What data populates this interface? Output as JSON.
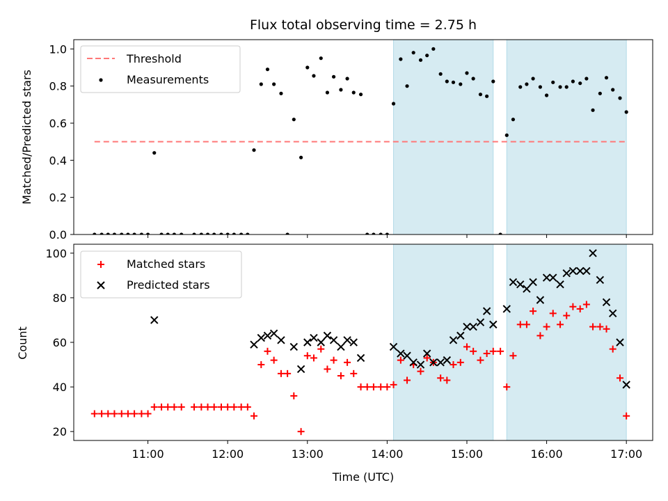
{
  "title": "Flux total observing time = 2.75 h",
  "top_ylabel": "Matched/Predicted stars",
  "bottom_ylabel": "Count",
  "xlabel": "Time (UTC)",
  "legend_top": {
    "threshold": "Threshold",
    "measurements": "Measurements"
  },
  "legend_bottom": {
    "matched": "Matched stars",
    "predicted": "Predicted stars"
  },
  "colors": {
    "threshold": "#ff7777",
    "measurement": "#000000",
    "matched": "#ff0000",
    "predicted": "#000000",
    "shade": "#add8e6"
  },
  "chart_data": [
    {
      "type": "scatter",
      "title": "Flux total observing time = 2.75 h",
      "ylabel": "Matched/Predicted stars",
      "xlim": [
        10.07,
        17.33
      ],
      "ylim": [
        0,
        1.05
      ],
      "xticks": [
        11,
        12,
        13,
        14,
        15,
        16,
        17
      ],
      "yticks": [
        0.0,
        0.2,
        0.4,
        0.6,
        0.8,
        1.0
      ],
      "ytick_labels": [
        "0.0",
        "0.2",
        "0.4",
        "0.6",
        "0.8",
        "1.0"
      ],
      "legend_position": "top-left",
      "threshold": {
        "y": 0.5,
        "x_range": [
          10.33,
          17.0
        ]
      },
      "shaded_intervals": [
        [
          14.08,
          15.33
        ],
        [
          15.5,
          17.0
        ]
      ],
      "series": [
        {
          "name": "Measurements",
          "points": [
            [
              10.33,
              0
            ],
            [
              10.42,
              0
            ],
            [
              10.5,
              0
            ],
            [
              10.58,
              0
            ],
            [
              10.67,
              0
            ],
            [
              10.75,
              0
            ],
            [
              10.83,
              0
            ],
            [
              10.92,
              0
            ],
            [
              11.0,
              0
            ],
            [
              11.08,
              0.44
            ],
            [
              11.17,
              0
            ],
            [
              11.25,
              0
            ],
            [
              11.33,
              0
            ],
            [
              11.42,
              0
            ],
            [
              11.58,
              0
            ],
            [
              11.67,
              0
            ],
            [
              11.75,
              0
            ],
            [
              11.83,
              0
            ],
            [
              11.92,
              0
            ],
            [
              12.0,
              0
            ],
            [
              12.08,
              0
            ],
            [
              12.17,
              0
            ],
            [
              12.25,
              0
            ],
            [
              12.33,
              0.455
            ],
            [
              12.42,
              0.81
            ],
            [
              12.5,
              0.89
            ],
            [
              12.58,
              0.81
            ],
            [
              12.67,
              0.76
            ],
            [
              12.75,
              0
            ],
            [
              12.83,
              0.62
            ],
            [
              12.92,
              0.415
            ],
            [
              13.0,
              0.9
            ],
            [
              13.08,
              0.855
            ],
            [
              13.17,
              0.95
            ],
            [
              13.25,
              0.765
            ],
            [
              13.33,
              0.85
            ],
            [
              13.42,
              0.78
            ],
            [
              13.5,
              0.84
            ],
            [
              13.58,
              0.765
            ],
            [
              13.67,
              0.755
            ],
            [
              13.75,
              0
            ],
            [
              13.83,
              0
            ],
            [
              13.92,
              0
            ],
            [
              14.0,
              0
            ],
            [
              14.08,
              0.705
            ],
            [
              14.17,
              0.945
            ],
            [
              14.25,
              0.8
            ],
            [
              14.33,
              0.98
            ],
            [
              14.42,
              0.94
            ],
            [
              14.5,
              0.965
            ],
            [
              14.58,
              1.0
            ],
            [
              14.67,
              0.865
            ],
            [
              14.75,
              0.825
            ],
            [
              14.83,
              0.82
            ],
            [
              14.92,
              0.81
            ],
            [
              15.0,
              0.87
            ],
            [
              15.08,
              0.84
            ],
            [
              15.17,
              0.755
            ],
            [
              15.25,
              0.745
            ],
            [
              15.33,
              0.825
            ],
            [
              15.42,
              0
            ],
            [
              15.5,
              0.535
            ],
            [
              15.58,
              0.62
            ],
            [
              15.67,
              0.795
            ],
            [
              15.75,
              0.81
            ],
            [
              15.83,
              0.84
            ],
            [
              15.92,
              0.795
            ],
            [
              16.0,
              0.75
            ],
            [
              16.08,
              0.82
            ],
            [
              16.17,
              0.795
            ],
            [
              16.25,
              0.795
            ],
            [
              16.33,
              0.825
            ],
            [
              16.42,
              0.815
            ],
            [
              16.5,
              0.84
            ],
            [
              16.58,
              0.67
            ],
            [
              16.67,
              0.76
            ],
            [
              16.75,
              0.845
            ],
            [
              16.83,
              0.78
            ],
            [
              16.92,
              0.735
            ],
            [
              17.0,
              0.66
            ]
          ]
        }
      ]
    },
    {
      "type": "scatter",
      "xlabel": "Time (UTC)",
      "ylabel": "Count",
      "xlim": [
        10.07,
        17.33
      ],
      "ylim": [
        16,
        104
      ],
      "xticks": [
        11,
        12,
        13,
        14,
        15,
        16,
        17
      ],
      "xtick_labels": [
        "11:00",
        "12:00",
        "13:00",
        "14:00",
        "15:00",
        "16:00",
        "17:00"
      ],
      "yticks": [
        20,
        40,
        60,
        80,
        100
      ],
      "legend_position": "top-left",
      "shaded_intervals": [
        [
          14.08,
          15.33
        ],
        [
          15.5,
          17.0
        ]
      ],
      "series": [
        {
          "name": "Matched stars",
          "points": [
            [
              10.33,
              28
            ],
            [
              10.42,
              28
            ],
            [
              10.5,
              28
            ],
            [
              10.58,
              28
            ],
            [
              10.67,
              28
            ],
            [
              10.75,
              28
            ],
            [
              10.83,
              28
            ],
            [
              10.92,
              28
            ],
            [
              11.0,
              28
            ],
            [
              11.08,
              31
            ],
            [
              11.17,
              31
            ],
            [
              11.25,
              31
            ],
            [
              11.33,
              31
            ],
            [
              11.42,
              31
            ],
            [
              11.58,
              31
            ],
            [
              11.67,
              31
            ],
            [
              11.75,
              31
            ],
            [
              11.83,
              31
            ],
            [
              11.92,
              31
            ],
            [
              12.0,
              31
            ],
            [
              12.08,
              31
            ],
            [
              12.17,
              31
            ],
            [
              12.25,
              31
            ],
            [
              12.33,
              27
            ],
            [
              12.42,
              50
            ],
            [
              12.5,
              56
            ],
            [
              12.58,
              52
            ],
            [
              12.67,
              46
            ],
            [
              12.75,
              46
            ],
            [
              12.83,
              36
            ],
            [
              12.92,
              20
            ],
            [
              13.0,
              54
            ],
            [
              13.08,
              53
            ],
            [
              13.17,
              57
            ],
            [
              13.25,
              48
            ],
            [
              13.33,
              52
            ],
            [
              13.42,
              45
            ],
            [
              13.5,
              51
            ],
            [
              13.58,
              46
            ],
            [
              13.67,
              40
            ],
            [
              13.75,
              40
            ],
            [
              13.83,
              40
            ],
            [
              13.92,
              40
            ],
            [
              14.0,
              40
            ],
            [
              14.08,
              41
            ],
            [
              14.17,
              52
            ],
            [
              14.25,
              43
            ],
            [
              14.33,
              50
            ],
            [
              14.42,
              47
            ],
            [
              14.5,
              53
            ],
            [
              14.58,
              51
            ],
            [
              14.67,
              44
            ],
            [
              14.75,
              43
            ],
            [
              14.83,
              50
            ],
            [
              14.92,
              51
            ],
            [
              15.0,
              58
            ],
            [
              15.08,
              56
            ],
            [
              15.17,
              52
            ],
            [
              15.25,
              55
            ],
            [
              15.33,
              56
            ],
            [
              15.42,
              56
            ],
            [
              15.5,
              40
            ],
            [
              15.58,
              54
            ],
            [
              15.67,
              68
            ],
            [
              15.75,
              68
            ],
            [
              15.83,
              74
            ],
            [
              15.92,
              63
            ],
            [
              16.0,
              67
            ],
            [
              16.08,
              73
            ],
            [
              16.17,
              68
            ],
            [
              16.25,
              72
            ],
            [
              16.33,
              76
            ],
            [
              16.42,
              75
            ],
            [
              16.5,
              77
            ],
            [
              16.58,
              67
            ],
            [
              16.67,
              67
            ],
            [
              16.75,
              66
            ],
            [
              16.83,
              57
            ],
            [
              16.92,
              44
            ],
            [
              17.0,
              27
            ]
          ]
        },
        {
          "name": "Predicted stars",
          "points": [
            [
              11.08,
              70
            ],
            [
              12.33,
              59
            ],
            [
              12.42,
              62
            ],
            [
              12.5,
              63
            ],
            [
              12.58,
              64
            ],
            [
              12.67,
              61
            ],
            [
              12.83,
              58
            ],
            [
              12.92,
              48
            ],
            [
              13.0,
              60
            ],
            [
              13.08,
              62
            ],
            [
              13.17,
              60
            ],
            [
              13.25,
              63
            ],
            [
              13.33,
              61
            ],
            [
              13.42,
              58
            ],
            [
              13.5,
              61
            ],
            [
              13.58,
              60
            ],
            [
              13.67,
              53
            ],
            [
              14.08,
              58
            ],
            [
              14.17,
              55
            ],
            [
              14.25,
              54
            ],
            [
              14.33,
              51
            ],
            [
              14.42,
              50
            ],
            [
              14.5,
              55
            ],
            [
              14.58,
              51
            ],
            [
              14.67,
              51
            ],
            [
              14.75,
              52
            ],
            [
              14.83,
              61
            ],
            [
              14.92,
              63
            ],
            [
              15.0,
              67
            ],
            [
              15.08,
              67
            ],
            [
              15.17,
              69
            ],
            [
              15.25,
              74
            ],
            [
              15.33,
              68
            ],
            [
              15.5,
              75
            ],
            [
              15.58,
              87
            ],
            [
              15.67,
              86
            ],
            [
              15.75,
              84
            ],
            [
              15.83,
              87
            ],
            [
              15.92,
              79
            ],
            [
              16.0,
              89
            ],
            [
              16.08,
              89
            ],
            [
              16.17,
              86
            ],
            [
              16.25,
              91
            ],
            [
              16.33,
              92
            ],
            [
              16.42,
              92
            ],
            [
              16.5,
              92
            ],
            [
              16.58,
              100
            ],
            [
              16.67,
              88
            ],
            [
              16.75,
              78
            ],
            [
              16.83,
              73
            ],
            [
              16.92,
              60
            ],
            [
              17.0,
              41
            ]
          ]
        }
      ]
    }
  ]
}
